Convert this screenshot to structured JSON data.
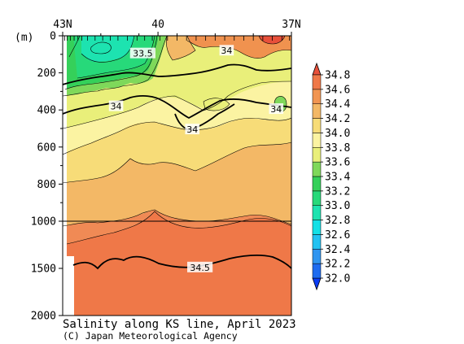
{
  "chart_data": {
    "type": "heatmap",
    "title": "Salinity along KS line, April 2023",
    "credit": "(C) Japan Meteorological Agency",
    "ylabel": "(m)",
    "x_ticks": [
      "43N",
      "40",
      "37N"
    ],
    "x_range": [
      43,
      37
    ],
    "y_ticks_upper": [
      "0",
      "200",
      "400",
      "600",
      "800",
      "1000"
    ],
    "y_ticks_lower": [
      "1500",
      "2000"
    ],
    "ylim": [
      0,
      2000
    ],
    "y_break_depth": 1000,
    "colorbar": {
      "levels": [
        "32.0",
        "32.2",
        "32.4",
        "32.6",
        "32.8",
        "33.0",
        "33.2",
        "33.4",
        "33.6",
        "33.8",
        "34.0",
        "34.2",
        "34.4",
        "34.6",
        "34.8"
      ],
      "colors": [
        "#0a3cf5",
        "#1e6cf0",
        "#2f95f0",
        "#22c2f2",
        "#14e0e6",
        "#1de3b0",
        "#27d97a",
        "#35d05a",
        "#7fd85a",
        "#e9ef7a",
        "#fbf3a2",
        "#f7dc78",
        "#f3b866",
        "#f19552",
        "#ef7848",
        "#e8503a"
      ]
    },
    "contour_labels": [
      {
        "text": "33.5",
        "lat": 40.9,
        "depth": 95
      },
      {
        "text": "34",
        "lat": 38.7,
        "depth": 80
      },
      {
        "text": "34",
        "lat": 41.6,
        "depth": 380
      },
      {
        "text": "34",
        "lat": 39.6,
        "depth": 505
      },
      {
        "text": "34",
        "lat": 37.4,
        "depth": 395
      },
      {
        "text": "34.5",
        "lat": 39.4,
        "depth": 1490
      }
    ],
    "stations": [
      42.95,
      42.88,
      42.8,
      42.7,
      42.6,
      42.5,
      42.35,
      42.15,
      41.95,
      41.75,
      41.55,
      41.3,
      41.05,
      40.85,
      40.65,
      40.45,
      40.25,
      40.0,
      39.75,
      39.5,
      39.25,
      39.0,
      38.75,
      38.5,
      38.25,
      38.0,
      37.75,
      37.5,
      37.25,
      37.05
    ]
  }
}
